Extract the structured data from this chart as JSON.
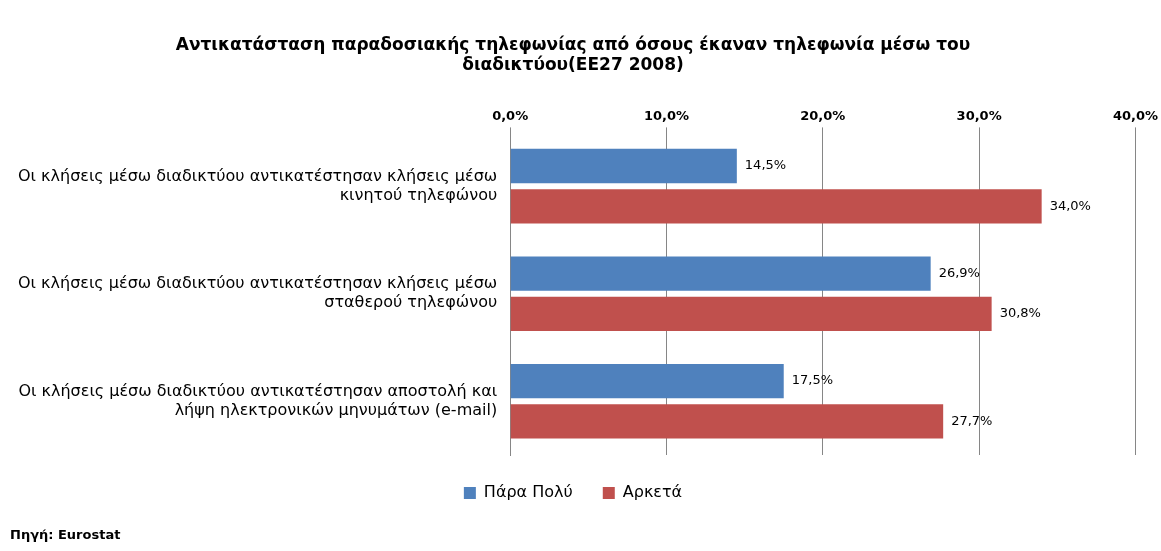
{
  "chart_data": {
    "type": "bar",
    "orientation": "horizontal",
    "title": "Αντικατάσταση παραδοσιακής τηλεφωνίας από όσους έκαναν τηλεφωνία μέσω του διαδικτύου(ΕΕ27 2008)",
    "categories": [
      "Οι κλήσεις μέσω διαδικτύου αντικατέστησαν κλήσεις μέσω κινητού τηλεφώνου",
      "Οι κλήσεις μέσω διαδικτύου αντικατέστησαν κλήσεις μέσω σταθερού τηλεφώνου",
      "Οι κλήσεις μέσω διαδικτύου αντικατέστησαν αποστολή και λήψη ηλεκτρονικών μηνυμάτων (e-mail)"
    ],
    "series": [
      {
        "name": "Πάρα Πολύ",
        "color": "#4f81bd",
        "values": [
          14.5,
          26.9,
          17.5
        ],
        "value_labels": [
          "14,5%",
          "26,9%",
          "17,5%"
        ]
      },
      {
        "name": "Αρκετά",
        "color": "#c0504d",
        "values": [
          34.0,
          30.8,
          27.7
        ],
        "value_labels": [
          "34,0%",
          "30,8%",
          "27,7%"
        ]
      }
    ],
    "xlim": [
      0,
      40
    ],
    "xticks": [
      {
        "value": 0,
        "label": "0,0%"
      },
      {
        "value": 10,
        "label": "10,0%"
      },
      {
        "value": 20,
        "label": "20,0%"
      },
      {
        "value": 30,
        "label": "30,0%"
      },
      {
        "value": 40,
        "label": "40,0%"
      }
    ],
    "grid": "x",
    "legend": "bottom",
    "annotations": [
      "Πηγή: Eurostat"
    ]
  }
}
